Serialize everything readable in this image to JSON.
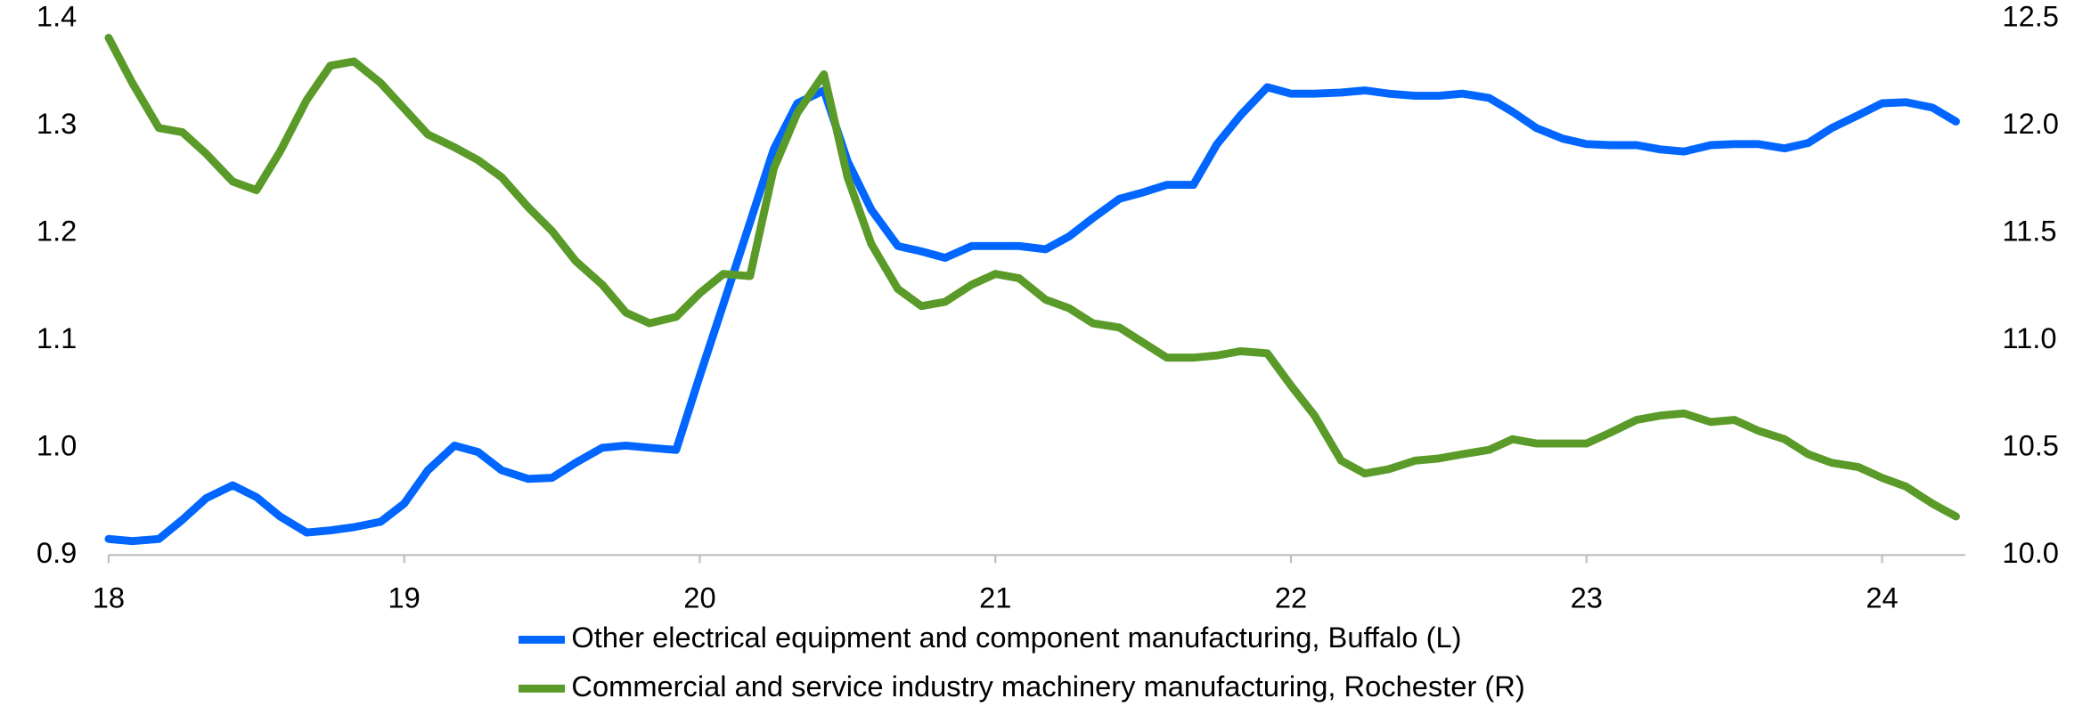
{
  "chart_data": {
    "type": "line",
    "x": [
      18,
      18.08,
      18.17,
      18.25,
      18.33,
      18.42,
      18.5,
      18.58,
      18.67,
      18.75,
      18.83,
      18.92,
      19,
      19.08,
      19.17,
      19.25,
      19.33,
      19.42,
      19.5,
      19.58,
      19.67,
      19.75,
      19.83,
      19.92,
      20,
      20.08,
      20.17,
      20.25,
      20.33,
      20.42,
      20.5,
      20.58,
      20.67,
      20.75,
      20.83,
      20.92,
      21,
      21.08,
      21.17,
      21.25,
      21.33,
      21.42,
      21.5,
      21.58,
      21.67,
      21.75,
      21.83,
      21.92,
      22,
      22.08,
      22.17,
      22.25,
      22.33,
      22.42,
      22.5,
      22.58,
      22.67,
      22.75,
      22.83,
      22.92,
      23,
      23.08,
      23.17,
      23.25,
      23.33,
      23.42,
      23.5,
      23.58,
      23.67,
      23.75,
      23.83,
      23.92,
      24,
      24.08,
      24.17,
      24.25
    ],
    "series": [
      {
        "name": "Other electrical equipment and component manufacturing, Buffalo (L)",
        "color": "#0066ff",
        "axis": "y",
        "values": [
          0.915,
          0.913,
          0.915,
          0.933,
          0.953,
          0.965,
          0.954,
          0.936,
          0.921,
          0.923,
          0.926,
          0.931,
          0.948,
          0.979,
          1.002,
          0.996,
          0.979,
          0.971,
          0.972,
          0.986,
          1.0,
          1.002,
          1.0,
          0.998,
          1.067,
          1.134,
          1.21,
          1.278,
          1.321,
          1.333,
          1.267,
          1.222,
          1.188,
          1.183,
          1.177,
          1.188,
          1.188,
          1.188,
          1.185,
          1.197,
          1.214,
          1.232,
          1.238,
          1.245,
          1.245,
          1.283,
          1.31,
          1.336,
          1.33,
          1.33,
          1.331,
          1.333,
          1.33,
          1.328,
          1.328,
          1.33,
          1.326,
          1.313,
          1.298,
          1.288,
          1.283,
          1.282,
          1.282,
          1.278,
          1.276,
          1.282,
          1.283,
          1.283,
          1.279,
          1.284,
          1.298,
          1.31,
          1.321,
          1.322,
          1.317,
          1.304
        ]
      },
      {
        "name": "Commercial and service industry machinery manufacturing, Rochester (R)",
        "color": "#5a9a28",
        "axis": "y2",
        "values": [
          12.41,
          12.2,
          11.99,
          11.97,
          11.87,
          11.74,
          11.7,
          11.88,
          12.12,
          12.28,
          12.3,
          12.2,
          12.08,
          11.96,
          11.9,
          11.84,
          11.76,
          11.62,
          11.51,
          11.37,
          11.26,
          11.13,
          11.08,
          11.11,
          11.22,
          11.31,
          11.3,
          11.8,
          12.06,
          12.24,
          11.76,
          11.45,
          11.24,
          11.16,
          11.18,
          11.26,
          11.31,
          11.29,
          11.19,
          11.15,
          11.08,
          11.06,
          10.99,
          10.92,
          10.92,
          10.93,
          10.95,
          10.94,
          10.79,
          10.65,
          10.44,
          10.38,
          10.4,
          10.44,
          10.45,
          10.47,
          10.49,
          10.54,
          10.52,
          10.52,
          10.52,
          10.57,
          10.63,
          10.65,
          10.66,
          10.62,
          10.63,
          10.58,
          10.54,
          10.47,
          10.43,
          10.41,
          10.36,
          10.32,
          10.24,
          10.18
        ]
      }
    ],
    "xlim": [
      18,
      24.25
    ],
    "xticks": [
      18,
      19,
      20,
      21,
      22,
      23,
      24
    ],
    "ylim": [
      0.9,
      1.4
    ],
    "yticks": [
      0.9,
      {
        "value": 1.0,
        "label": "1.0"
      },
      1.1,
      1.2,
      1.3,
      1.4
    ],
    "y2lim": [
      10.0,
      12.5
    ],
    "y2ticks": [
      {
        "value": 10.0,
        "label": "10.0"
      },
      10.5,
      {
        "value": 11.0,
        "label": "11.0"
      },
      11.5,
      {
        "value": 12.0,
        "label": "12.0"
      },
      12.5
    ],
    "grid": false
  }
}
